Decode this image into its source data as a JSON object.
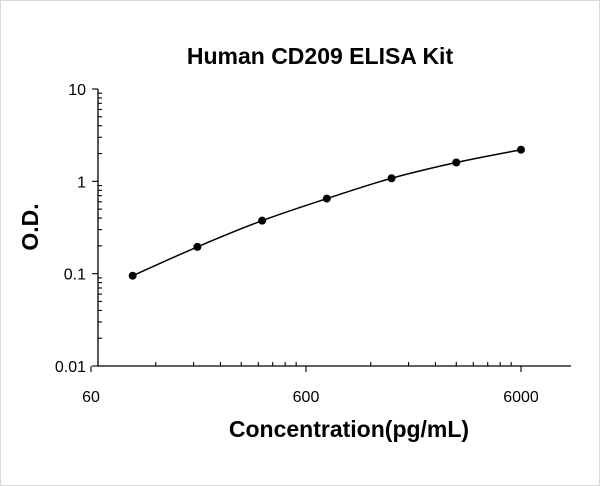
{
  "chart_data": {
    "type": "scatter",
    "title": "Human CD209 ELISA Kit",
    "xlabel": "Concentration(pg/mL)",
    "ylabel": "O.D.",
    "x_scale": "log",
    "y_scale": "log",
    "xlim": [
      60,
      6000
    ],
    "ylim": [
      0.01,
      10
    ],
    "x_tick_labels": [
      "60",
      "600",
      "6000"
    ],
    "y_tick_labels": [
      "0.01",
      "0.1",
      "1",
      "10"
    ],
    "grid": false,
    "legend": "none",
    "series": [
      {
        "x": [
          93.75,
          187.5,
          375,
          750,
          1500,
          3000,
          6000
        ],
        "y": [
          0.095,
          0.195,
          0.375,
          0.65,
          1.08,
          1.6,
          2.2
        ],
        "marker": "circle",
        "line": "smooth",
        "color": "#000000"
      }
    ]
  }
}
